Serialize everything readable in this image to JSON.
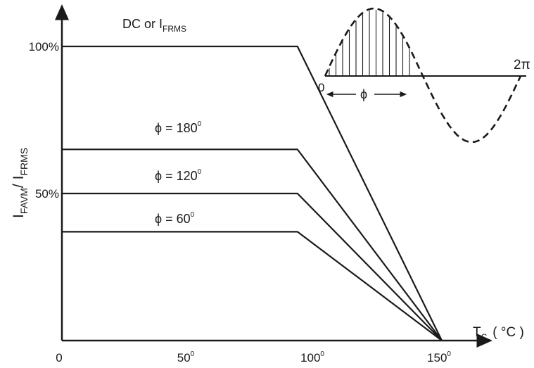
{
  "chart_data": {
    "type": "line",
    "title": "",
    "xlabel": {
      "main": "T",
      "sub": "C",
      "unit": "( °C )"
    },
    "ylabel": {
      "main1": "I",
      "sub1": "FAVM",
      "slash": "/ ",
      "main2": "I",
      "sub2": "FRMS"
    },
    "xlim": [
      0,
      150
    ],
    "ylim": [
      0,
      100
    ],
    "x_ticks": [
      {
        "value": 0,
        "label": "0",
        "degree": false
      },
      {
        "value": 50,
        "label": "50",
        "degree": true
      },
      {
        "value": 100,
        "label": "100",
        "degree": true
      },
      {
        "value": 150,
        "label": "150",
        "degree": true
      }
    ],
    "y_ticks": [
      {
        "value": 50,
        "label": "50%"
      },
      {
        "value": 100,
        "label": "100%"
      }
    ],
    "series": [
      {
        "name": "DC or IFRMS",
        "label_main": "DC  or  I",
        "label_sub": "FRMS",
        "label_deg": "",
        "x": [
          0,
          93,
          150
        ],
        "y": [
          100,
          100,
          0
        ]
      },
      {
        "name": "ϕ = 180°",
        "label_main": "ϕ = 180",
        "label_sub": "",
        "label_deg": "0",
        "x": [
          0,
          93,
          150
        ],
        "y": [
          65,
          65,
          0
        ]
      },
      {
        "name": "ϕ = 120°",
        "label_main": "ϕ = 120",
        "label_sub": "",
        "label_deg": "0",
        "x": [
          0,
          93,
          150
        ],
        "y": [
          50,
          50,
          0
        ]
      },
      {
        "name": "ϕ = 60°",
        "label_main": "ϕ = 60",
        "label_sub": "",
        "label_deg": "0",
        "x": [
          0,
          93,
          150
        ],
        "y": [
          37,
          37,
          0
        ]
      }
    ],
    "inset": {
      "description_labels": {
        "origin": "0",
        "end": "2π",
        "angle": "ϕ"
      }
    },
    "colors": {
      "line": "#1a1a1a",
      "background": "#ffffff"
    }
  }
}
